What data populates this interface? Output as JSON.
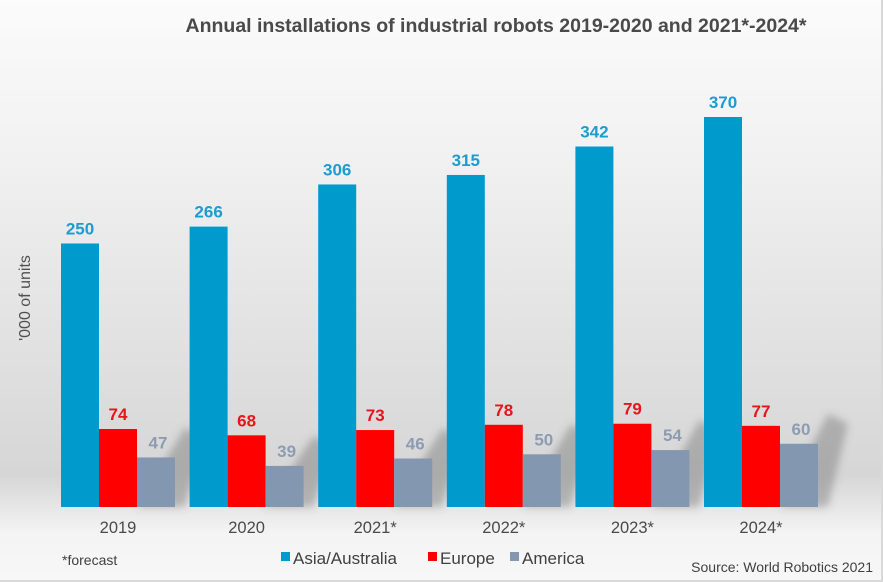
{
  "chart_data": {
    "type": "bar",
    "title": "Annual installations of industrial robots 2019-2020 and 2021*-2024*",
    "xlabel": "",
    "ylabel": "'000 of units",
    "categories": [
      "2019",
      "2020",
      "2021*",
      "2022*",
      "2023*",
      "2024*"
    ],
    "series": [
      {
        "name": "Asia/Australia",
        "color": "#009ACD",
        "label_color": "#1E9BD0",
        "values": [
          250,
          266,
          306,
          315,
          342,
          370
        ]
      },
      {
        "name": "Europe",
        "color": "#FF0000",
        "label_color": "#E8141B",
        "values": [
          74,
          68,
          73,
          78,
          79,
          77
        ]
      },
      {
        "name": "America",
        "color": "#8497B0",
        "label_color": "#8D9CB2",
        "values": [
          47,
          39,
          46,
          50,
          54,
          60
        ]
      }
    ],
    "ylim": [
      0,
      370
    ],
    "grid": false,
    "legend_position": "bottom",
    "data_labels": true,
    "footnote": "*forecast",
    "source": "Source: World Robotics 2021"
  }
}
